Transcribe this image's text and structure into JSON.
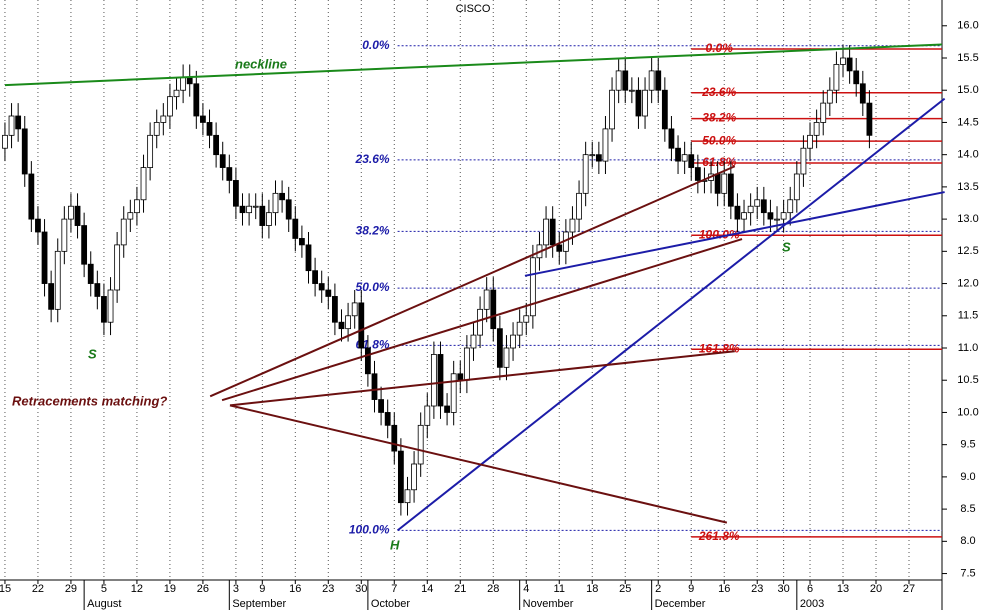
{
  "chart_data": {
    "type": "candlestick",
    "title": "CISCO",
    "open": [
      14.1,
      14.3,
      14.6,
      14.4,
      13.7,
      13.0,
      12.8,
      12.0,
      11.6,
      12.5,
      13.0,
      13.2,
      12.9,
      12.3,
      12.0,
      11.8,
      11.4,
      11.9,
      12.6,
      13.0,
      13.1,
      13.3,
      13.8,
      14.3,
      14.5,
      14.6,
      14.9,
      15.0,
      15.2,
      15.1,
      14.6,
      14.5,
      14.3,
      14.0,
      13.8,
      13.6,
      13.2,
      13.1,
      13.2,
      13.2,
      12.9,
      13.1,
      13.4,
      13.3,
      13.0,
      12.7,
      12.6,
      12.2,
      12.0,
      11.9,
      11.8,
      11.4,
      11.3,
      11.5,
      11.7,
      11.0,
      10.6,
      10.2,
      10.0,
      9.8,
      9.4,
      8.6,
      8.8,
      9.2,
      9.8,
      10.1,
      10.9,
      10.1,
      10.0,
      10.6,
      10.5,
      11.0,
      11.2,
      11.6,
      11.9,
      11.3,
      10.7,
      11.0,
      11.2,
      11.4,
      11.5,
      12.4,
      12.6,
      13.0,
      12.6,
      12.5,
      12.8,
      13.0,
      13.4,
      14.0,
      14.0,
      13.9,
      14.4,
      15.0,
      15.3,
      15.0,
      15.0,
      14.6,
      15.0,
      15.3,
      15.0,
      14.4,
      14.1,
      13.9,
      14.0,
      13.8,
      13.6,
      13.6,
      13.7,
      13.4,
      13.7,
      13.2,
      13.0,
      13.1,
      13.2,
      13.3,
      13.1,
      13.0,
      13.0,
      13.1,
      13.3,
      13.7,
      14.1,
      14.3,
      14.5,
      14.8,
      15.0,
      15.4,
      15.5,
      15.3,
      15.1,
      14.8
    ],
    "high": [
      14.5,
      14.8,
      14.8,
      14.6,
      13.9,
      13.2,
      13.0,
      12.2,
      12.7,
      13.2,
      13.4,
      13.4,
      13.1,
      12.5,
      12.2,
      12.0,
      12.1,
      12.8,
      13.2,
      13.3,
      13.5,
      14.0,
      14.5,
      14.7,
      14.8,
      15.1,
      15.2,
      15.4,
      15.4,
      15.3,
      14.8,
      14.7,
      14.5,
      14.2,
      14.0,
      13.8,
      13.4,
      13.4,
      13.4,
      13.4,
      13.3,
      13.6,
      13.6,
      13.5,
      13.2,
      12.9,
      12.8,
      12.4,
      12.2,
      12.1,
      12.0,
      11.6,
      11.7,
      11.9,
      11.9,
      11.2,
      10.8,
      10.4,
      10.2,
      10.0,
      9.6,
      9.0,
      9.4,
      10.0,
      10.3,
      11.1,
      11.1,
      10.3,
      10.8,
      10.8,
      11.2,
      11.4,
      11.8,
      12.1,
      12.1,
      11.5,
      11.2,
      11.4,
      11.6,
      11.7,
      12.6,
      12.8,
      13.2,
      13.2,
      12.8,
      13.0,
      13.2,
      13.6,
      14.2,
      14.2,
      14.2,
      14.6,
      15.2,
      15.5,
      15.5,
      15.2,
      15.2,
      15.2,
      15.5,
      15.5,
      15.2,
      14.6,
      14.3,
      14.2,
      14.2,
      14.0,
      13.8,
      13.9,
      13.9,
      13.9,
      13.9,
      13.4,
      13.3,
      13.4,
      13.5,
      13.5,
      13.3,
      13.2,
      13.3,
      13.5,
      13.9,
      14.3,
      14.5,
      14.7,
      15.0,
      15.2,
      15.6,
      15.7,
      15.7,
      15.5,
      15.3,
      15.0
    ],
    "low": [
      13.9,
      14.1,
      14.2,
      13.5,
      12.8,
      12.6,
      11.8,
      11.4,
      11.4,
      12.3,
      12.8,
      12.7,
      12.1,
      11.8,
      11.6,
      11.2,
      11.2,
      11.7,
      12.4,
      12.8,
      12.9,
      13.1,
      13.6,
      14.1,
      14.3,
      14.4,
      14.7,
      14.8,
      14.9,
      14.4,
      14.3,
      14.1,
      13.8,
      13.6,
      13.4,
      13.0,
      12.9,
      12.9,
      13.0,
      12.7,
      12.7,
      12.9,
      13.1,
      12.8,
      12.5,
      12.4,
      12.0,
      11.8,
      11.7,
      11.6,
      11.2,
      11.1,
      11.1,
      11.3,
      10.8,
      10.4,
      10.0,
      9.8,
      9.6,
      9.2,
      8.4,
      8.4,
      8.6,
      9.0,
      9.6,
      9.9,
      9.9,
      9.8,
      9.8,
      10.3,
      10.3,
      10.8,
      11.0,
      11.4,
      11.1,
      10.5,
      10.5,
      10.8,
      11.0,
      11.2,
      11.3,
      12.2,
      12.4,
      12.4,
      12.3,
      12.3,
      12.6,
      12.8,
      13.2,
      13.8,
      13.7,
      13.7,
      14.2,
      14.8,
      14.8,
      14.8,
      14.4,
      14.4,
      14.8,
      14.8,
      14.2,
      13.9,
      13.7,
      13.7,
      13.6,
      13.4,
      13.4,
      13.4,
      13.2,
      13.2,
      13.0,
      12.8,
      12.8,
      12.9,
      13.0,
      12.9,
      12.8,
      12.8,
      12.8,
      12.9,
      13.1,
      13.5,
      13.9,
      14.1,
      14.3,
      14.6,
      14.8,
      15.2,
      15.1,
      14.9,
      14.6,
      14.1
    ],
    "close": [
      14.3,
      14.6,
      14.4,
      13.7,
      13.0,
      12.8,
      12.0,
      11.6,
      12.5,
      13.0,
      13.2,
      12.9,
      12.3,
      12.0,
      11.8,
      11.4,
      11.9,
      12.6,
      13.0,
      13.1,
      13.3,
      13.8,
      14.3,
      14.5,
      14.6,
      14.9,
      15.0,
      15.2,
      15.1,
      14.6,
      14.5,
      14.3,
      14.0,
      13.8,
      13.6,
      13.2,
      13.1,
      13.2,
      13.2,
      12.9,
      13.1,
      13.4,
      13.3,
      13.0,
      12.7,
      12.6,
      12.2,
      12.0,
      11.9,
      11.8,
      11.4,
      11.3,
      11.5,
      11.7,
      11.0,
      10.6,
      10.2,
      10.0,
      9.8,
      9.4,
      8.6,
      8.8,
      9.2,
      9.8,
      10.1,
      10.9,
      10.1,
      10.0,
      10.6,
      10.5,
      11.0,
      11.2,
      11.6,
      11.9,
      11.3,
      10.7,
      11.0,
      11.2,
      11.4,
      11.5,
      12.4,
      12.6,
      13.0,
      12.6,
      12.5,
      12.8,
      13.0,
      13.4,
      14.0,
      14.0,
      13.9,
      14.4,
      15.0,
      15.3,
      15.0,
      15.0,
      14.6,
      15.0,
      15.3,
      15.0,
      14.4,
      14.1,
      13.9,
      14.0,
      13.8,
      13.6,
      13.6,
      13.7,
      13.4,
      13.7,
      13.2,
      13.0,
      13.1,
      13.2,
      13.3,
      13.1,
      13.0,
      13.0,
      13.1,
      13.3,
      13.7,
      14.1,
      14.3,
      14.5,
      14.8,
      15.0,
      15.4,
      15.5,
      15.3,
      15.1,
      14.8,
      14.3
    ],
    "up_color": "#ffffff",
    "down_color": "#000000",
    "xlim": [
      -0.75,
      142
    ],
    "ylim": [
      7.4,
      16.4
    ],
    "xticks": [
      {
        "value": 0,
        "label": "15"
      },
      {
        "value": 5,
        "label": "22"
      },
      {
        "value": 10,
        "label": "29"
      },
      {
        "value": 15,
        "label": "5"
      },
      {
        "value": 20,
        "label": "12"
      },
      {
        "value": 25,
        "label": "19"
      },
      {
        "value": 30,
        "label": "26"
      },
      {
        "value": 35,
        "label": "3"
      },
      {
        "value": 39,
        "label": "9"
      },
      {
        "value": 44,
        "label": "16"
      },
      {
        "value": 49,
        "label": "23"
      },
      {
        "value": 54,
        "label": "30"
      },
      {
        "value": 59,
        "label": "7"
      },
      {
        "value": 64,
        "label": "14"
      },
      {
        "value": 69,
        "label": "21"
      },
      {
        "value": 74,
        "label": "28"
      },
      {
        "value": 79,
        "label": "4"
      },
      {
        "value": 84,
        "label": "11"
      },
      {
        "value": 89,
        "label": "18"
      },
      {
        "value": 94,
        "label": "25"
      },
      {
        "value": 99,
        "label": "2"
      },
      {
        "value": 104,
        "label": "9"
      },
      {
        "value": 109,
        "label": "16"
      },
      {
        "value": 114,
        "label": "23"
      },
      {
        "value": 118,
        "label": "30"
      },
      {
        "value": 122,
        "label": "6"
      },
      {
        "value": 127,
        "label": "13"
      },
      {
        "value": 132,
        "label": "20"
      },
      {
        "value": 137,
        "label": "27"
      }
    ],
    "months": [
      {
        "value": 12,
        "label": "August"
      },
      {
        "value": 34,
        "label": "September"
      },
      {
        "value": 55,
        "label": "October"
      },
      {
        "value": 78,
        "label": "November"
      },
      {
        "value": 98,
        "label": "December"
      },
      {
        "value": 120,
        "label": "2003"
      }
    ],
    "yticks": [
      7.5,
      {
        "value": 8,
        "label": "8.0"
      },
      8.5,
      {
        "value": 9,
        "label": "9.0"
      },
      9.5,
      {
        "value": 10,
        "label": "10.0"
      },
      10.5,
      {
        "value": 11,
        "label": "11.0"
      },
      11.5,
      {
        "value": 12,
        "label": "12.0"
      },
      12.5,
      {
        "value": 13,
        "label": "13.0"
      },
      13.5,
      {
        "value": 14,
        "label": "14.0"
      },
      14.5,
      {
        "value": 15,
        "label": "15.0"
      },
      15.5,
      {
        "value": 16,
        "label": "16.0"
      }
    ],
    "grid": true,
    "retracements": [
      {
        "color": "#1c1ca8",
        "style": "dotted",
        "start": 59.5,
        "end": 142,
        "levels": [
          {
            "value": 15.69,
            "label": "0.0%"
          },
          {
            "value": 13.92,
            "label": "23.6%"
          },
          {
            "value": 12.81,
            "label": "38.2%"
          },
          {
            "value": 11.93,
            "label": "50.0%"
          },
          {
            "value": 11.04,
            "label": "61.8%"
          },
          {
            "value": 8.17,
            "label": "100.0%"
          }
        ]
      },
      {
        "color": "#cc1010",
        "style": "solid",
        "start": 104,
        "end": 142,
        "levels": [
          {
            "value": 15.64,
            "label": "0.0%"
          },
          {
            "value": 14.96,
            "label": "23.6%"
          },
          {
            "value": 14.56,
            "label": "38.2%"
          },
          {
            "value": 14.21,
            "label": "50.0%"
          },
          {
            "value": 13.87,
            "label": "61.8%"
          },
          {
            "value": 12.75,
            "label": "100.0%"
          },
          {
            "value": 10.98,
            "label": "161.8%"
          },
          {
            "value": 8.07,
            "label": "261.8%"
          }
        ]
      }
    ],
    "trendlines": [
      {
        "color": "#1a8a1a",
        "x": [
          0,
          142
        ],
        "y": [
          15.08,
          15.71
        ]
      },
      {
        "color": "#1c1ca8",
        "x": [
          59.5,
          142.4
        ],
        "y": [
          8.17,
          14.87
        ]
      },
      {
        "color": "#1c1ca8",
        "x": [
          78.8,
          142.4
        ],
        "y": [
          12.12,
          13.42
        ]
      },
      {
        "color": "#6b1010",
        "x": [
          31.1,
          110.6
        ],
        "y": [
          10.25,
          13.82
        ]
      },
      {
        "color": "#6b1010",
        "x": [
          32.9,
          111.7
        ],
        "y": [
          10.19,
          12.69
        ]
      },
      {
        "color": "#6b1010",
        "x": [
          34.1,
          110.6
        ],
        "y": [
          10.11,
          10.95
        ]
      },
      {
        "color": "#6b1010",
        "x": [
          34.1,
          109.4
        ],
        "y": [
          10.11,
          8.29
        ]
      }
    ],
    "annotations": [
      "neckline",
      "Retracements matching?",
      "S",
      "H",
      "S"
    ]
  }
}
